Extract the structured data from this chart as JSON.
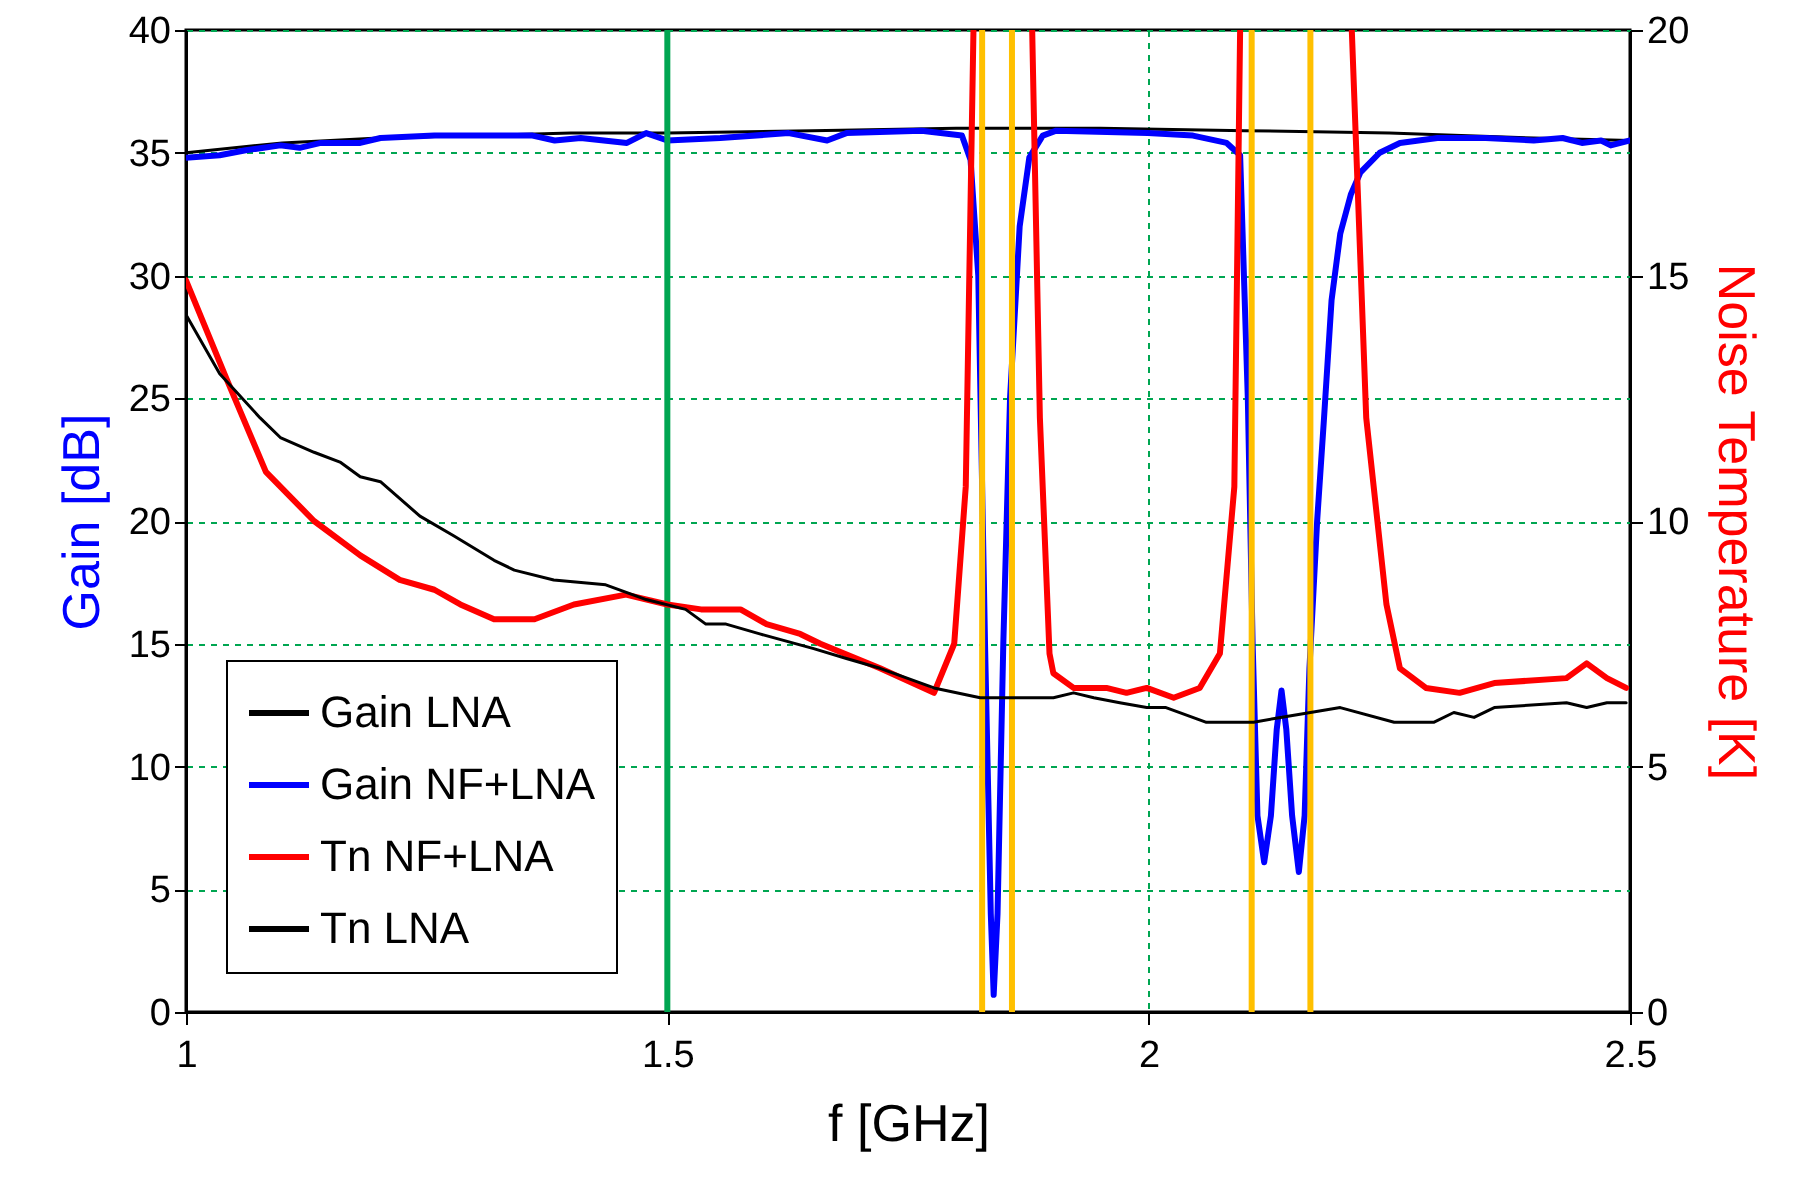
{
  "chart_data": {
    "type": "line",
    "xlabel": "f [GHz]",
    "ylabel": "Gain [dB]",
    "y2label": "Noise Temperature [K]",
    "xlim": [
      1,
      2.5
    ],
    "xticks": [
      {
        "value": 1,
        "label": "1"
      },
      1.5,
      {
        "value": 2,
        "label": "2"
      },
      2.5
    ],
    "ylim": [
      0,
      40
    ],
    "yticks": [
      0,
      5,
      10,
      15,
      20,
      25,
      30,
      35,
      40
    ],
    "y2lim": [
      0,
      20
    ],
    "y2ticks": [
      0,
      5,
      10,
      15,
      20
    ],
    "grid": true,
    "legend": "bottom left",
    "line_style": "solid",
    "series": [
      {
        "name": "Gain LNA",
        "color": "#000000",
        "x": [
          1.0,
          1.1,
          1.2,
          1.3,
          1.4,
          1.5,
          1.65,
          1.8,
          1.95,
          2.1,
          2.25,
          2.4,
          2.5
        ],
        "values": [
          35.0,
          35.4,
          35.6,
          35.7,
          35.8,
          35.8,
          35.9,
          36.0,
          36.0,
          35.9,
          35.8,
          35.6,
          35.5
        ]
      },
      {
        "name": "Gain NF+LNA",
        "color": "#0000ff",
        "x": [
          1.0,
          1.035,
          1.062,
          1.098,
          1.118,
          1.14,
          1.181,
          1.202,
          1.258,
          1.36,
          1.383,
          1.41,
          1.458,
          1.478,
          1.5,
          1.555,
          1.626,
          1.666,
          1.686,
          1.764,
          1.806,
          1.815,
          1.823,
          1.83,
          1.836,
          1.839,
          1.843,
          1.849,
          1.856,
          1.866,
          1.876,
          1.89,
          1.904,
          1.999,
          2.046,
          2.081,
          2.095,
          2.103,
          2.108,
          2.113,
          2.12,
          2.127,
          2.133,
          2.138,
          2.143,
          2.149,
          2.156,
          2.162,
          2.167,
          2.175,
          2.182,
          2.19,
          2.199,
          2.21,
          2.22,
          2.24,
          2.261,
          2.3,
          2.35,
          2.4,
          2.43,
          2.45,
          2.47,
          2.48,
          2.5
        ],
        "values": [
          34.8,
          34.9,
          35.1,
          35.3,
          35.2,
          35.4,
          35.4,
          35.6,
          35.7,
          35.7,
          35.5,
          35.6,
          35.4,
          35.8,
          35.5,
          35.6,
          35.8,
          35.5,
          35.8,
          35.9,
          35.7,
          34.7,
          30,
          15,
          4,
          0.7,
          4,
          15,
          25,
          32,
          34.8,
          35.7,
          35.9,
          35.8,
          35.7,
          35.4,
          34.9,
          25,
          15,
          8,
          6.1,
          8,
          11.5,
          13.1,
          11.5,
          8,
          5.7,
          8,
          14,
          20,
          24.1,
          29,
          31.7,
          33.3,
          34.2,
          35,
          35.4,
          35.6,
          35.6,
          35.5,
          35.6,
          35.4,
          35.5,
          35.3,
          35.5
        ]
      },
      {
        "name": "Tn NF+LNA",
        "color": "#ff0000",
        "axis": "y2",
        "x": [
          1.0,
          1.042,
          1.083,
          1.133,
          1.181,
          1.222,
          1.258,
          1.285,
          1.32,
          1.362,
          1.403,
          1.457,
          1.5,
          1.535,
          1.576,
          1.603,
          1.638,
          1.659,
          1.721,
          1.777,
          1.798,
          1.81,
          1.818,
          1.85,
          1.879,
          1.887,
          1.897,
          1.901,
          1.922,
          1.956,
          1.977,
          1.998,
          2.026,
          2.053,
          2.074,
          2.089,
          2.095,
          2.15,
          2.211,
          2.226,
          2.247,
          2.261,
          2.288,
          2.323,
          2.359,
          2.434,
          2.455,
          2.476,
          2.496
        ],
        "values": [
          14.9,
          12.9,
          11.0,
          10.0,
          9.3,
          8.8,
          8.6,
          8.3,
          8.0,
          8.0,
          8.3,
          8.5,
          8.3,
          8.2,
          8.2,
          7.9,
          7.7,
          7.5,
          7.0,
          6.5,
          7.5,
          10.7,
          20,
          null,
          20,
          12.1,
          7.3,
          6.9,
          6.6,
          6.6,
          6.5,
          6.6,
          6.4,
          6.6,
          7.3,
          10.7,
          20,
          null,
          20,
          12.1,
          8.3,
          7.0,
          6.6,
          6.5,
          6.7,
          6.8,
          7.1,
          6.8,
          6.6
        ]
      },
      {
        "name": "Tn LNA",
        "color": "#000000",
        "axis": "y2",
        "x": [
          1.0,
          1.035,
          1.077,
          1.098,
          1.133,
          1.16,
          1.181,
          1.202,
          1.243,
          1.278,
          1.32,
          1.341,
          1.382,
          1.436,
          1.478,
          1.519,
          1.54,
          1.561,
          1.596,
          1.652,
          1.686,
          1.721,
          1.777,
          1.825,
          1.873,
          1.901,
          1.922,
          1.943,
          1.97,
          1.998,
          2.018,
          2.06,
          2.109,
          2.137,
          2.199,
          2.255,
          2.296,
          2.317,
          2.338,
          2.359,
          2.434,
          2.455,
          2.476,
          2.496
        ],
        "values": [
          14.2,
          13.0,
          12.1,
          11.7,
          11.4,
          11.2,
          10.9,
          10.8,
          10.1,
          9.7,
          9.2,
          9.0,
          8.8,
          8.7,
          8.4,
          8.2,
          7.9,
          7.9,
          7.7,
          7.4,
          7.2,
          7.0,
          6.6,
          6.4,
          6.4,
          6.4,
          6.5,
          6.4,
          6.3,
          6.2,
          6.2,
          5.9,
          5.9,
          6.0,
          6.2,
          5.9,
          5.9,
          6.1,
          6.0,
          6.2,
          6.3,
          6.2,
          6.3,
          6.3
        ]
      }
    ],
    "ref_lines": [
      {
        "axis": "x",
        "value": 1.5,
        "color": "#00a651"
      },
      {
        "axis": "x",
        "value": 1.827,
        "color": "#ffc000"
      },
      {
        "axis": "x",
        "value": 1.858,
        "color": "#ffc000"
      },
      {
        "axis": "x",
        "value": 2.107,
        "color": "#ffc000"
      },
      {
        "axis": "x",
        "value": 2.168,
        "color": "#ffc000"
      }
    ]
  }
}
